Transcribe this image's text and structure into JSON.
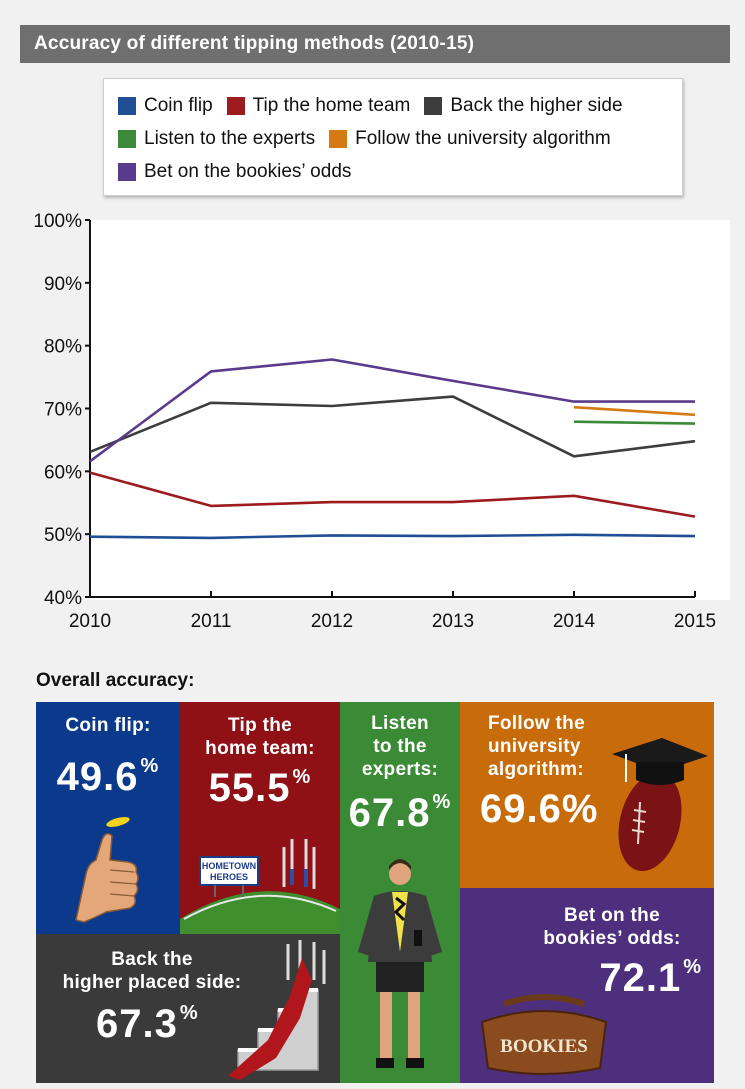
{
  "header": {
    "title": "Accuracy of different tipping methods (2010-15)"
  },
  "chart_data": {
    "type": "line",
    "title": "Accuracy of different tipping methods (2010-15)",
    "x": [
      2010,
      2011,
      2012,
      2013,
      2014,
      2015
    ],
    "x_tick_labels": [
      "2010",
      "2011",
      "2012",
      "2013",
      "2014",
      "2015"
    ],
    "ylim": [
      40,
      100
    ],
    "y_ticks": [
      40,
      50,
      60,
      70,
      80,
      90,
      100
    ],
    "y_tick_labels": [
      "40%",
      "50%",
      "60%",
      "70%",
      "80%",
      "90%",
      "100%"
    ],
    "legend_position": "top",
    "series": [
      {
        "name": "Coin flip",
        "color": "#1f4e96",
        "x": [
          2010,
          2011,
          2012,
          2013,
          2014,
          2015
        ],
        "values": [
          49.6,
          49.4,
          49.8,
          49.7,
          49.9,
          49.7
        ]
      },
      {
        "name": "Tip the home team",
        "color": "#9b1b1f",
        "x": [
          2010,
          2011,
          2012,
          2013,
          2014,
          2015
        ],
        "values": [
          59.8,
          54.5,
          55.1,
          55.1,
          56.1,
          52.8
        ]
      },
      {
        "name": "Back the higher side",
        "color": "#3d3d3d",
        "x": [
          2010,
          2011,
          2012,
          2013,
          2014,
          2015
        ],
        "values": [
          63.1,
          70.9,
          70.4,
          71.9,
          62.4,
          64.8
        ]
      },
      {
        "name": "Listen to the experts",
        "color": "#3a8a3a",
        "x": [
          2014,
          2015
        ],
        "values": [
          67.9,
          67.6
        ]
      },
      {
        "name": "Follow the university algorithm",
        "color": "#d57a12",
        "x": [
          2014,
          2015
        ],
        "values": [
          70.2,
          69.0
        ]
      },
      {
        "name": "Bet on the bookies’ odds",
        "color": "#5a3a8c",
        "x": [
          2010,
          2011,
          2012,
          2013,
          2014,
          2015
        ],
        "values": [
          61.6,
          75.9,
          77.8,
          74.4,
          71.1,
          71.1
        ]
      }
    ]
  },
  "overall": {
    "title": "Overall accuracy:",
    "coin": {
      "label": "Coin flip:",
      "value": "49.6",
      "unit": "%"
    },
    "home": {
      "label1": "Tip the",
      "label2": "home team:",
      "value": "55.5",
      "unit": "%",
      "sign1": "HOMETOWN",
      "sign2": "HEROES"
    },
    "experts": {
      "label1": "Listen",
      "label2": "to the",
      "label3": "experts:",
      "value": "67.8",
      "unit": "%"
    },
    "algorithm": {
      "label1": "Follow the",
      "label2": "university",
      "label3": "algorithm:",
      "value": "69.6%"
    },
    "higher": {
      "label1": "Back the",
      "label2": "higher placed side:",
      "value": "67.3",
      "unit": "%"
    },
    "bookies": {
      "label1": "Bet on the",
      "label2": "bookies’ odds:",
      "value": "72.1",
      "unit": "%",
      "bag_label": "BOOKIES"
    }
  },
  "colors": {
    "coin_tile": "#0b3a8c",
    "home_tile": "#8f1015",
    "experts_tile": "#3a8a36",
    "algorithm_tile": "#c86b0a",
    "higher_tile": "#3a3a3a",
    "bookies_tile": "#4e2f7e"
  }
}
